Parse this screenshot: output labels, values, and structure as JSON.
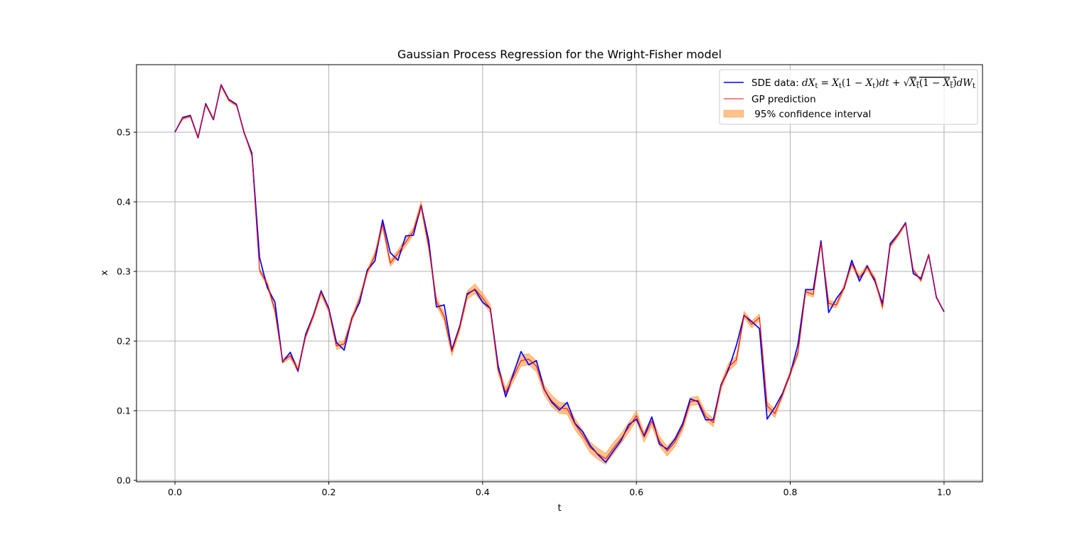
{
  "chart_data": {
    "type": "line",
    "title": "Gaussian Process Regression for the Wright-Fisher model",
    "xlabel": "t",
    "ylabel": "x",
    "xlim": [
      -0.05,
      1.05
    ],
    "ylim": [
      -0.002,
      0.597
    ],
    "grid": true,
    "legend_position": "top-right",
    "x_ticks": [
      "0.0",
      "0.2",
      "0.4",
      "0.6",
      "0.8",
      "1.0"
    ],
    "y_ticks": [
      "0.0",
      "0.1",
      "0.2",
      "0.3",
      "0.4",
      "0.5"
    ],
    "x": [
      0.0,
      0.01,
      0.02,
      0.03,
      0.04,
      0.05,
      0.06,
      0.07,
      0.08,
      0.09,
      0.1,
      0.11,
      0.12,
      0.13,
      0.14,
      0.15,
      0.16,
      0.17,
      0.18,
      0.19,
      0.2,
      0.21,
      0.22,
      0.23,
      0.24,
      0.25,
      0.26,
      0.27,
      0.28,
      0.29,
      0.3,
      0.31,
      0.32,
      0.33,
      0.34,
      0.35,
      0.36,
      0.37,
      0.38,
      0.39,
      0.4,
      0.41,
      0.42,
      0.43,
      0.44,
      0.45,
      0.46,
      0.47,
      0.48,
      0.49,
      0.5,
      0.51,
      0.52,
      0.53,
      0.54,
      0.55,
      0.56,
      0.57,
      0.58,
      0.59,
      0.6,
      0.61,
      0.62,
      0.63,
      0.64,
      0.65,
      0.66,
      0.67,
      0.68,
      0.69,
      0.7,
      0.71,
      0.72,
      0.73,
      0.74,
      0.75,
      0.76,
      0.77,
      0.78,
      0.79,
      0.8,
      0.81,
      0.82,
      0.83,
      0.84,
      0.85,
      0.86,
      0.87,
      0.88,
      0.89,
      0.9,
      0.91,
      0.92,
      0.93,
      0.94,
      0.95,
      0.96,
      0.97,
      0.98,
      0.99,
      1.0
    ],
    "series": [
      {
        "name": "SDE data",
        "legend_label": "SDE data: ",
        "color": "#0000ff",
        "values": [
          0.5,
          0.521,
          0.524,
          0.492,
          0.541,
          0.518,
          0.568,
          0.547,
          0.54,
          0.499,
          0.47,
          0.32,
          0.277,
          0.256,
          0.17,
          0.184,
          0.157,
          0.21,
          0.237,
          0.272,
          0.247,
          0.198,
          0.187,
          0.233,
          0.255,
          0.302,
          0.315,
          0.374,
          0.327,
          0.316,
          0.351,
          0.352,
          0.395,
          0.344,
          0.249,
          0.252,
          0.187,
          0.22,
          0.268,
          0.274,
          0.256,
          0.247,
          0.166,
          0.12,
          0.153,
          0.185,
          0.166,
          0.172,
          0.131,
          0.112,
          0.101,
          0.112,
          0.082,
          0.07,
          0.05,
          0.037,
          0.026,
          0.042,
          0.057,
          0.08,
          0.088,
          0.064,
          0.091,
          0.052,
          0.045,
          0.059,
          0.081,
          0.117,
          0.113,
          0.087,
          0.087,
          0.137,
          0.16,
          0.194,
          0.237,
          0.228,
          0.218,
          0.088,
          0.105,
          0.125,
          0.153,
          0.195,
          0.274,
          0.274,
          0.344,
          0.241,
          0.261,
          0.276,
          0.316,
          0.286,
          0.308,
          0.286,
          0.254,
          0.34,
          0.353,
          0.37,
          0.297,
          0.29,
          0.324,
          0.263,
          0.242
        ]
      },
      {
        "name": "GP prediction",
        "legend_label": "GP prediction",
        "color": "#ff0000",
        "values": [
          0.5,
          0.52,
          0.523,
          0.493,
          0.54,
          0.519,
          0.567,
          0.546,
          0.539,
          0.5,
          0.467,
          0.302,
          0.282,
          0.244,
          0.171,
          0.179,
          0.159,
          0.207,
          0.236,
          0.27,
          0.245,
          0.193,
          0.196,
          0.232,
          0.26,
          0.299,
          0.323,
          0.368,
          0.312,
          0.326,
          0.342,
          0.358,
          0.395,
          0.335,
          0.257,
          0.235,
          0.185,
          0.218,
          0.266,
          0.275,
          0.262,
          0.247,
          0.16,
          0.126,
          0.149,
          0.172,
          0.174,
          0.164,
          0.13,
          0.114,
          0.104,
          0.103,
          0.081,
          0.065,
          0.047,
          0.038,
          0.031,
          0.046,
          0.06,
          0.076,
          0.093,
          0.062,
          0.085,
          0.056,
          0.042,
          0.055,
          0.077,
          0.113,
          0.115,
          0.092,
          0.083,
          0.135,
          0.163,
          0.173,
          0.238,
          0.224,
          0.234,
          0.107,
          0.096,
          0.123,
          0.154,
          0.183,
          0.271,
          0.267,
          0.341,
          0.254,
          0.252,
          0.277,
          0.311,
          0.291,
          0.306,
          0.289,
          0.249,
          0.337,
          0.352,
          0.369,
          0.302,
          0.287,
          0.324,
          0.263,
          0.243
        ]
      },
      {
        "name": "95% confidence interval",
        "legend_label": " 95% confidence interval",
        "color": "#ffb36b",
        "type": "band",
        "halfwidth": [
          0.0,
          0.002,
          0.002,
          0.002,
          0.002,
          0.002,
          0.002,
          0.002,
          0.002,
          0.002,
          0.003,
          0.003,
          0.004,
          0.004,
          0.003,
          0.004,
          0.004,
          0.003,
          0.004,
          0.004,
          0.004,
          0.005,
          0.005,
          0.004,
          0.005,
          0.004,
          0.005,
          0.006,
          0.005,
          0.005,
          0.006,
          0.005,
          0.006,
          0.005,
          0.006,
          0.006,
          0.006,
          0.005,
          0.006,
          0.007,
          0.007,
          0.006,
          0.006,
          0.007,
          0.007,
          0.008,
          0.008,
          0.008,
          0.007,
          0.008,
          0.008,
          0.008,
          0.008,
          0.007,
          0.008,
          0.008,
          0.008,
          0.008,
          0.007,
          0.007,
          0.007,
          0.007,
          0.007,
          0.007,
          0.007,
          0.007,
          0.006,
          0.006,
          0.006,
          0.006,
          0.006,
          0.005,
          0.006,
          0.006,
          0.005,
          0.005,
          0.005,
          0.006,
          0.006,
          0.004,
          0.004,
          0.004,
          0.004,
          0.004,
          0.004,
          0.005,
          0.004,
          0.004,
          0.004,
          0.004,
          0.004,
          0.004,
          0.004,
          0.003,
          0.003,
          0.002,
          0.002,
          0.002,
          0.002,
          0.002,
          0.0
        ]
      }
    ]
  }
}
